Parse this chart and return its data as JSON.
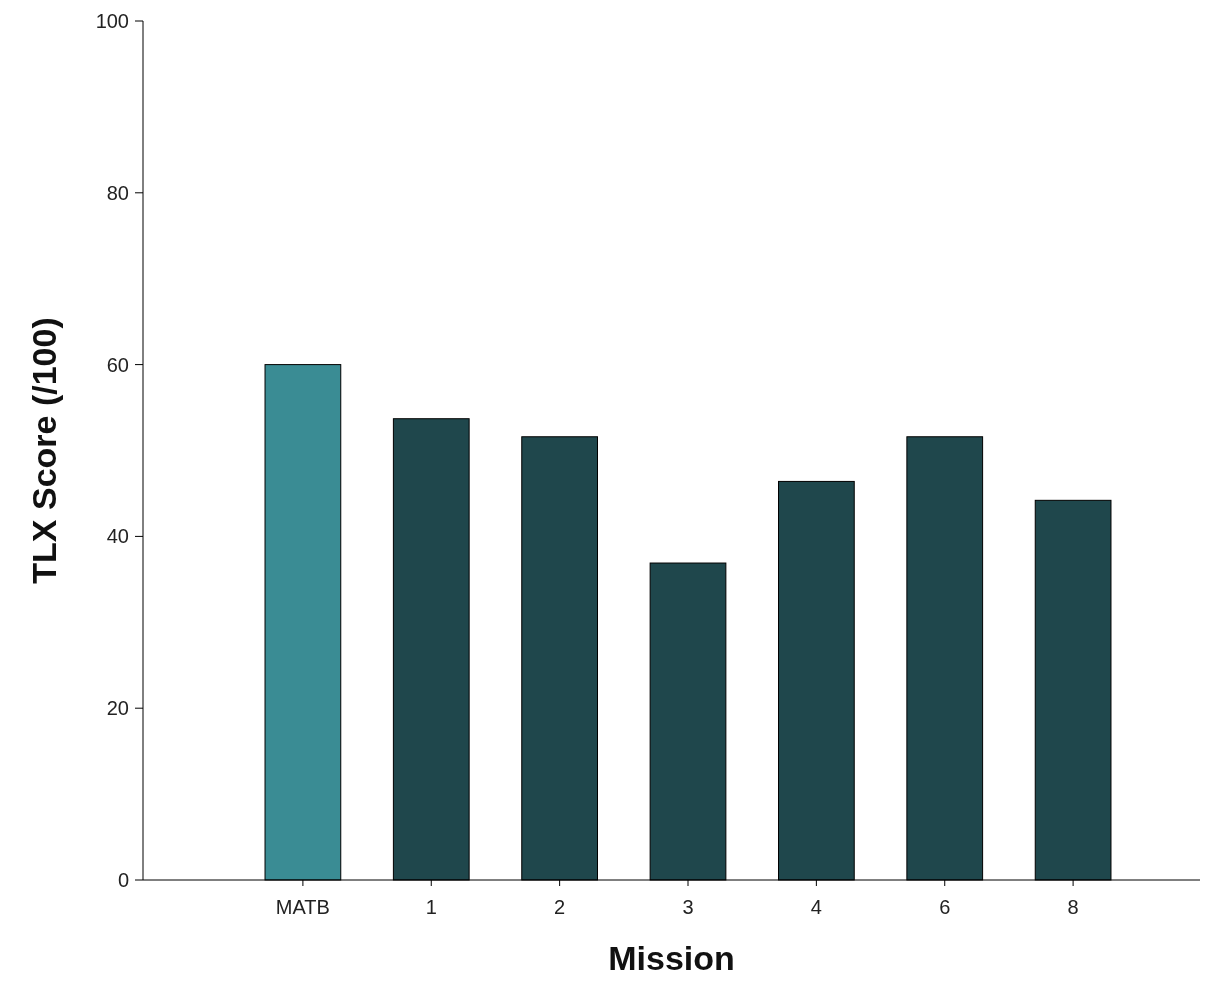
{
  "chart_data": {
    "type": "bar",
    "xlabel": "Mission",
    "ylabel": "TLX Score (/100)",
    "categories": [
      "MATB",
      "1",
      "2",
      "3",
      "4",
      "6",
      "8"
    ],
    "values": [
      60,
      53.7,
      51.6,
      36.9,
      46.4,
      51.6,
      44.2
    ],
    "colors": [
      "#3a8c94",
      "#1f474c",
      "#1f474c",
      "#1f474c",
      "#1f474c",
      "#1f474c",
      "#1f474c"
    ],
    "ylim": [
      0,
      100
    ],
    "yticks": [
      0,
      20,
      40,
      60,
      80,
      100
    ]
  }
}
